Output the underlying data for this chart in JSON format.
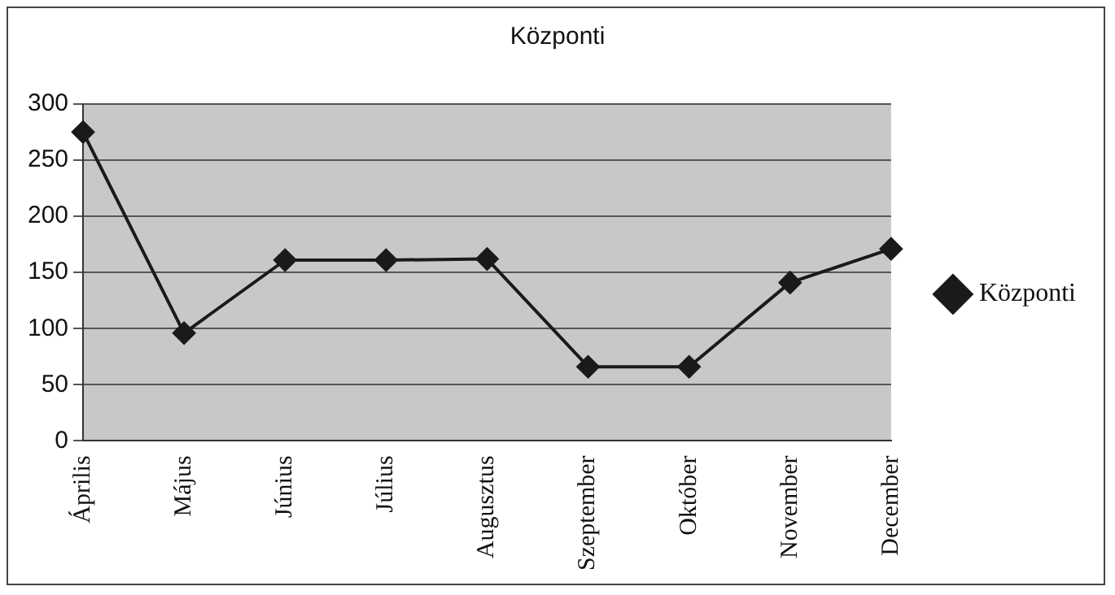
{
  "chart_data": {
    "type": "line",
    "title": "Központi",
    "categories": [
      "Április",
      "Május",
      "Június",
      "Július",
      "Augusztus",
      "Szeptember",
      "Október",
      "November",
      "December"
    ],
    "series": [
      {
        "name": "Központi",
        "color": "#1a1a1a",
        "values": [
          275,
          96,
          161,
          161,
          162,
          66,
          66,
          141,
          171
        ]
      }
    ],
    "ylim": [
      0,
      300
    ],
    "yticks": [
      0,
      50,
      100,
      150,
      200,
      250,
      300
    ],
    "grid": "y",
    "legend": "right",
    "marker": "diamond",
    "line_style": "solid"
  }
}
